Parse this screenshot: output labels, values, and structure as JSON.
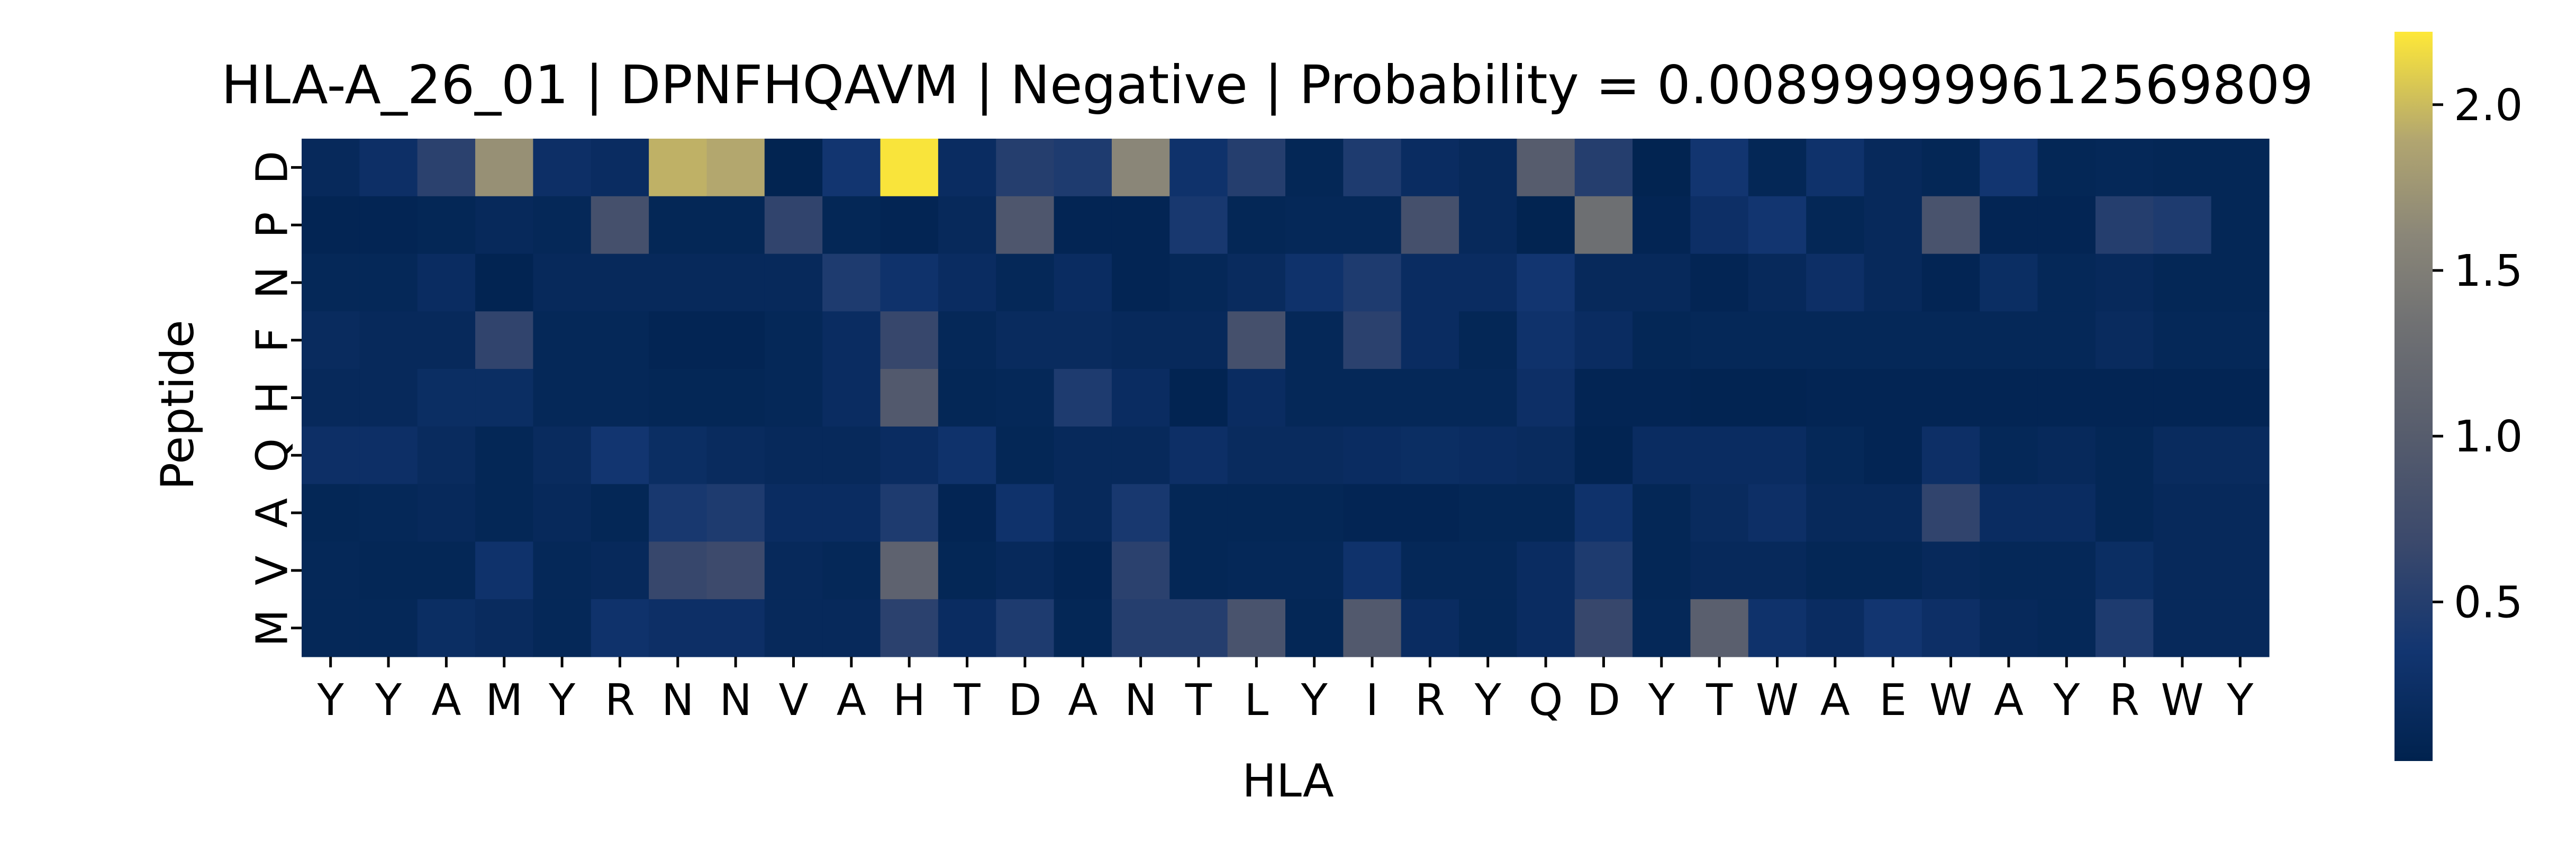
{
  "chart_data": {
    "type": "heatmap",
    "title": "HLA-A_26_01 | DPNFHQAVM | Negative | Probability = 0.008999999612569809",
    "xlabel": "HLA",
    "ylabel": "Peptide",
    "x_categories": [
      "Y",
      "Y",
      "A",
      "M",
      "Y",
      "R",
      "N",
      "N",
      "V",
      "A",
      "H",
      "T",
      "D",
      "A",
      "N",
      "T",
      "L",
      "Y",
      "I",
      "R",
      "Y",
      "Q",
      "D",
      "Y",
      "T",
      "W",
      "A",
      "E",
      "W",
      "A",
      "Y",
      "R",
      "W",
      "Y"
    ],
    "y_categories": [
      "D",
      "P",
      "N",
      "F",
      "H",
      "Q",
      "A",
      "V",
      "M"
    ],
    "values": [
      [
        0.15,
        0.25,
        0.55,
        1.7,
        0.25,
        0.2,
        1.95,
        1.9,
        0.05,
        0.35,
        2.2,
        0.2,
        0.5,
        0.45,
        1.6,
        0.3,
        0.5,
        0.1,
        0.45,
        0.2,
        0.15,
        1.0,
        0.5,
        0.05,
        0.35,
        0.1,
        0.3,
        0.15,
        0.1,
        0.35,
        0.1,
        0.12,
        0.1,
        0.1
      ],
      [
        0.08,
        0.08,
        0.1,
        0.15,
        0.12,
        0.8,
        0.1,
        0.1,
        0.6,
        0.1,
        0.08,
        0.15,
        0.9,
        0.08,
        0.08,
        0.4,
        0.1,
        0.12,
        0.12,
        0.8,
        0.15,
        0.05,
        1.3,
        0.08,
        0.25,
        0.35,
        0.1,
        0.15,
        0.85,
        0.08,
        0.08,
        0.5,
        0.45,
        0.1
      ],
      [
        0.12,
        0.12,
        0.2,
        0.06,
        0.15,
        0.15,
        0.15,
        0.15,
        0.15,
        0.45,
        0.3,
        0.2,
        0.12,
        0.2,
        0.08,
        0.12,
        0.18,
        0.3,
        0.45,
        0.2,
        0.2,
        0.35,
        0.15,
        0.15,
        0.08,
        0.15,
        0.25,
        0.15,
        0.08,
        0.22,
        0.12,
        0.15,
        0.1,
        0.1
      ],
      [
        0.18,
        0.15,
        0.15,
        0.6,
        0.12,
        0.12,
        0.08,
        0.08,
        0.12,
        0.2,
        0.65,
        0.12,
        0.18,
        0.18,
        0.15,
        0.15,
        0.8,
        0.12,
        0.55,
        0.2,
        0.1,
        0.3,
        0.2,
        0.1,
        0.12,
        0.12,
        0.12,
        0.12,
        0.12,
        0.12,
        0.12,
        0.18,
        0.12,
        0.12
      ],
      [
        0.15,
        0.15,
        0.22,
        0.22,
        0.12,
        0.12,
        0.1,
        0.1,
        0.12,
        0.2,
        0.95,
        0.1,
        0.12,
        0.45,
        0.2,
        0.06,
        0.2,
        0.12,
        0.12,
        0.12,
        0.12,
        0.25,
        0.08,
        0.08,
        0.06,
        0.06,
        0.08,
        0.08,
        0.08,
        0.08,
        0.08,
        0.08,
        0.08,
        0.08
      ],
      [
        0.25,
        0.25,
        0.18,
        0.1,
        0.18,
        0.35,
        0.22,
        0.18,
        0.15,
        0.15,
        0.2,
        0.3,
        0.1,
        0.15,
        0.15,
        0.25,
        0.18,
        0.18,
        0.2,
        0.22,
        0.2,
        0.18,
        0.06,
        0.2,
        0.2,
        0.2,
        0.12,
        0.08,
        0.25,
        0.12,
        0.15,
        0.1,
        0.18,
        0.18
      ],
      [
        0.1,
        0.12,
        0.15,
        0.1,
        0.15,
        0.1,
        0.4,
        0.45,
        0.2,
        0.2,
        0.45,
        0.08,
        0.3,
        0.15,
        0.4,
        0.1,
        0.1,
        0.1,
        0.08,
        0.08,
        0.1,
        0.1,
        0.3,
        0.1,
        0.18,
        0.25,
        0.15,
        0.15,
        0.6,
        0.2,
        0.2,
        0.1,
        0.15,
        0.15
      ],
      [
        0.12,
        0.1,
        0.1,
        0.3,
        0.12,
        0.15,
        0.65,
        0.7,
        0.15,
        0.12,
        1.1,
        0.1,
        0.15,
        0.08,
        0.55,
        0.1,
        0.12,
        0.12,
        0.3,
        0.12,
        0.12,
        0.2,
        0.45,
        0.1,
        0.15,
        0.15,
        0.1,
        0.1,
        0.15,
        0.12,
        0.12,
        0.22,
        0.15,
        0.15
      ],
      [
        0.12,
        0.12,
        0.22,
        0.18,
        0.12,
        0.3,
        0.25,
        0.25,
        0.15,
        0.15,
        0.55,
        0.2,
        0.45,
        0.1,
        0.5,
        0.5,
        0.85,
        0.1,
        0.95,
        0.2,
        0.12,
        0.2,
        0.65,
        0.12,
        1.05,
        0.3,
        0.2,
        0.35,
        0.25,
        0.15,
        0.12,
        0.45,
        0.15,
        0.15
      ]
    ],
    "colormap": "cividis",
    "vmin": 0.02,
    "vmax": 2.22,
    "colorbar_ticks": [
      0.5,
      1.0,
      1.5,
      2.0
    ],
    "colorbar_tick_labels": [
      "0.5",
      "1.0",
      "1.5",
      "2.0"
    ]
  }
}
